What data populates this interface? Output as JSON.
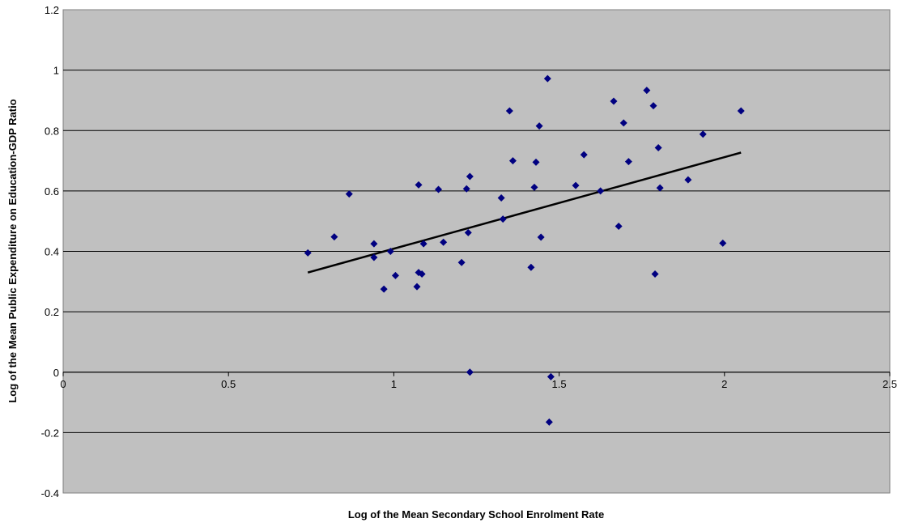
{
  "chart_data": {
    "type": "scatter",
    "title": "",
    "xlabel": "Log of the Mean Secondary School Enrolment Rate",
    "ylabel": "Log of the Mean Public Expenditure on Education-GDP Ratio",
    "xlim": [
      0,
      2.5
    ],
    "ylim": [
      -0.4,
      1.2
    ],
    "x_ticks": [
      "0",
      "0.5",
      "1",
      "1.5",
      "2",
      "2.5"
    ],
    "y_ticks": [
      "-0.4",
      "-0.2",
      "0",
      "0.2",
      "0.4",
      "0.6",
      "0.8",
      "1",
      "1.2"
    ],
    "x_tick_values": [
      0,
      0.5,
      1,
      1.5,
      2,
      2.5
    ],
    "y_tick_values": [
      -0.4,
      -0.2,
      0,
      0.2,
      0.4,
      0.6,
      0.8,
      1,
      1.2
    ],
    "grid": "horizontal",
    "plot_background": "#c0c0c0",
    "marker_color": "#000080",
    "marker_shape": "diamond",
    "series": [
      {
        "points": [
          [
            0.74,
            0.395
          ],
          [
            0.82,
            0.448
          ],
          [
            0.865,
            0.59
          ],
          [
            0.94,
            0.425
          ],
          [
            0.94,
            0.38
          ],
          [
            0.97,
            0.275
          ],
          [
            0.99,
            0.4
          ],
          [
            1.005,
            0.32
          ],
          [
            1.07,
            0.283
          ],
          [
            1.075,
            0.33
          ],
          [
            1.085,
            0.325
          ],
          [
            1.075,
            0.62
          ],
          [
            1.09,
            0.425
          ],
          [
            1.135,
            0.605
          ],
          [
            1.15,
            0.43
          ],
          [
            1.205,
            0.363
          ],
          [
            1.22,
            0.607
          ],
          [
            1.225,
            0.462
          ],
          [
            1.23,
            0.648
          ],
          [
            1.23,
            0.0
          ],
          [
            1.325,
            0.577
          ],
          [
            1.33,
            0.507
          ],
          [
            1.35,
            0.865
          ],
          [
            1.36,
            0.7
          ],
          [
            1.415,
            0.347
          ],
          [
            1.425,
            0.612
          ],
          [
            1.43,
            0.695
          ],
          [
            1.44,
            0.815
          ],
          [
            1.445,
            0.447
          ],
          [
            1.465,
            0.972
          ],
          [
            1.475,
            -0.015
          ],
          [
            1.47,
            -0.165
          ],
          [
            1.55,
            0.618
          ],
          [
            1.575,
            0.72
          ],
          [
            1.625,
            0.6
          ],
          [
            1.665,
            0.897
          ],
          [
            1.68,
            0.483
          ],
          [
            1.695,
            0.825
          ],
          [
            1.71,
            0.697
          ],
          [
            1.765,
            0.933
          ],
          [
            1.785,
            0.882
          ],
          [
            1.79,
            0.325
          ],
          [
            1.8,
            0.743
          ],
          [
            1.805,
            0.61
          ],
          [
            1.89,
            0.637
          ],
          [
            1.935,
            0.788
          ],
          [
            1.995,
            0.427
          ],
          [
            2.05,
            0.865
          ]
        ]
      }
    ],
    "trendline": {
      "type": "linear",
      "x": [
        0.74,
        2.05
      ],
      "y": [
        0.33,
        0.727
      ],
      "color": "#000000"
    }
  }
}
